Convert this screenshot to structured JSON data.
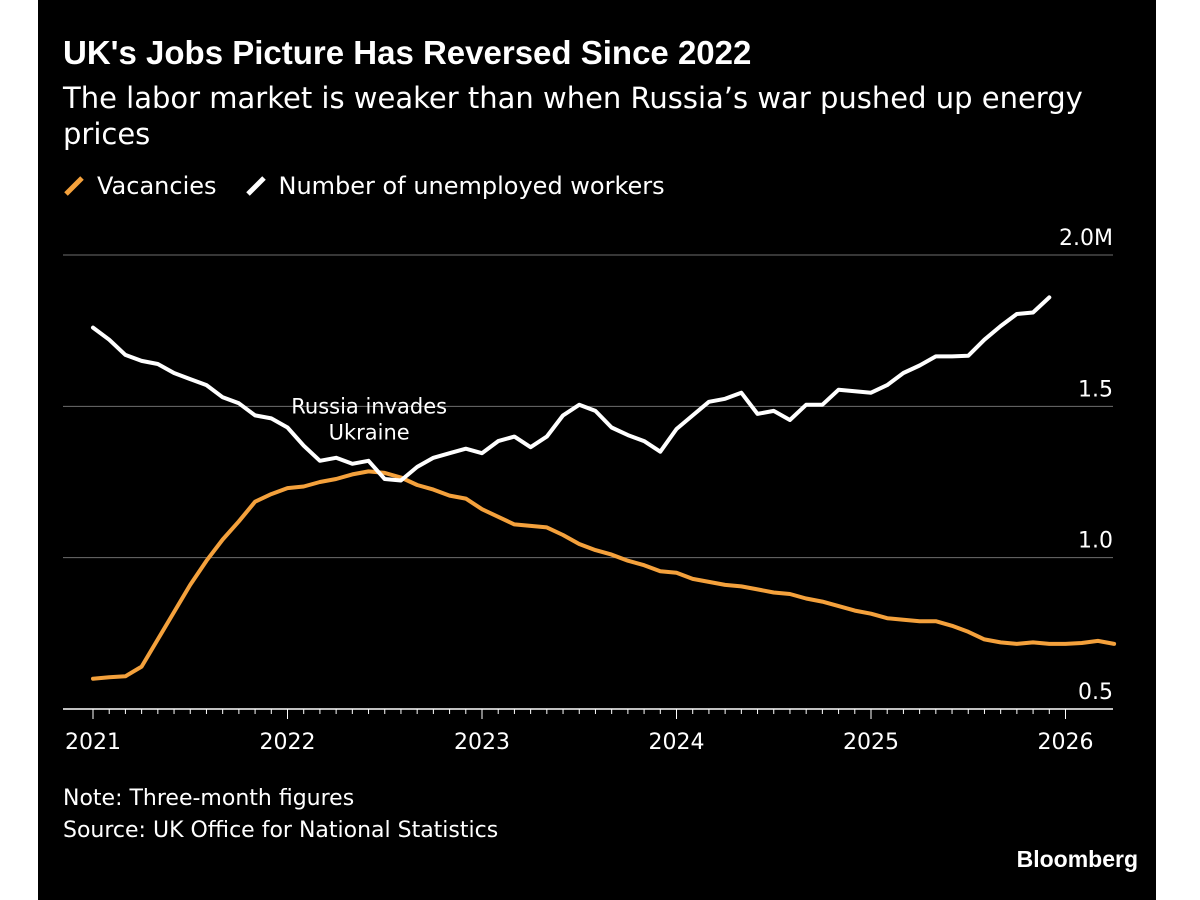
{
  "title": "UK's Jobs Picture Has Reversed Since 2022",
  "subtitle": "The labor market is weaker than when Russia’s war pushed up energy prices",
  "legend": {
    "vacancies": "Vacancies",
    "unemployed": "Number of unemployed workers"
  },
  "note": "Note: Three-month figures",
  "source": "Source: UK Office for National Statistics",
  "brand": "Bloomberg",
  "colors": {
    "background": "#000000",
    "vacancies": "#f4a13c",
    "unemployed": "#ffffff",
    "grid": "#6e6e6e"
  },
  "chart_data": {
    "type": "line",
    "title": "UK's Jobs Picture Has Reversed Since 2022",
    "xlabel": "",
    "ylabel": "",
    "xlim": [
      2021.0,
      2026.25
    ],
    "ylim": [
      0.5,
      2.0
    ],
    "y_ticks": [
      {
        "value": 2.0,
        "label": "2.0M"
      },
      {
        "value": 1.5,
        "label": "1.5"
      },
      {
        "value": 1.0,
        "label": "1.0"
      },
      {
        "value": 0.5,
        "label": "0.5"
      }
    ],
    "x_ticks": [
      {
        "value": 2021,
        "label": "2021"
      },
      {
        "value": 2022,
        "label": "2022"
      },
      {
        "value": 2023,
        "label": "2023"
      },
      {
        "value": 2024,
        "label": "2024"
      },
      {
        "value": 2025,
        "label": "2025"
      },
      {
        "value": 2026,
        "label": "2026"
      }
    ],
    "x_start": 2021.0,
    "x_step": 0.08333,
    "series": [
      {
        "name": "Vacancies",
        "key": "vacancies",
        "values": [
          0.6,
          0.605,
          0.608,
          0.64,
          0.73,
          0.82,
          0.91,
          0.99,
          1.06,
          1.12,
          1.185,
          1.21,
          1.23,
          1.235,
          1.25,
          1.26,
          1.275,
          1.285,
          1.28,
          1.265,
          1.24,
          1.225,
          1.205,
          1.195,
          1.16,
          1.135,
          1.11,
          1.105,
          1.1,
          1.075,
          1.045,
          1.025,
          1.01,
          0.99,
          0.975,
          0.955,
          0.95,
          0.93,
          0.92,
          0.91,
          0.905,
          0.895,
          0.885,
          0.88,
          0.865,
          0.855,
          0.84,
          0.825,
          0.815,
          0.8,
          0.795,
          0.79,
          0.79,
          0.775,
          0.755,
          0.73,
          0.72,
          0.715,
          0.72,
          0.715,
          0.715,
          0.718,
          0.725,
          0.715
        ]
      },
      {
        "name": "Number of unemployed workers",
        "key": "unemployed",
        "values": [
          1.76,
          1.72,
          1.67,
          1.65,
          1.64,
          1.61,
          1.59,
          1.57,
          1.53,
          1.51,
          1.47,
          1.46,
          1.43,
          1.37,
          1.32,
          1.33,
          1.31,
          1.32,
          1.26,
          1.255,
          1.3,
          1.33,
          1.345,
          1.36,
          1.345,
          1.385,
          1.4,
          1.365,
          1.4,
          1.47,
          1.505,
          1.485,
          1.43,
          1.405,
          1.385,
          1.35,
          1.425,
          1.47,
          1.515,
          1.525,
          1.545,
          1.475,
          1.485,
          1.455,
          1.505,
          1.505,
          1.555,
          1.55,
          1.545,
          1.57,
          1.61,
          1.635,
          1.665,
          1.665,
          1.667,
          1.72,
          1.765,
          1.805,
          1.81,
          1.86
        ]
      }
    ],
    "annotations": [
      {
        "text": [
          "Russia invades",
          "Ukraine"
        ],
        "x": 2022.42,
        "y": 1.5
      }
    ]
  }
}
